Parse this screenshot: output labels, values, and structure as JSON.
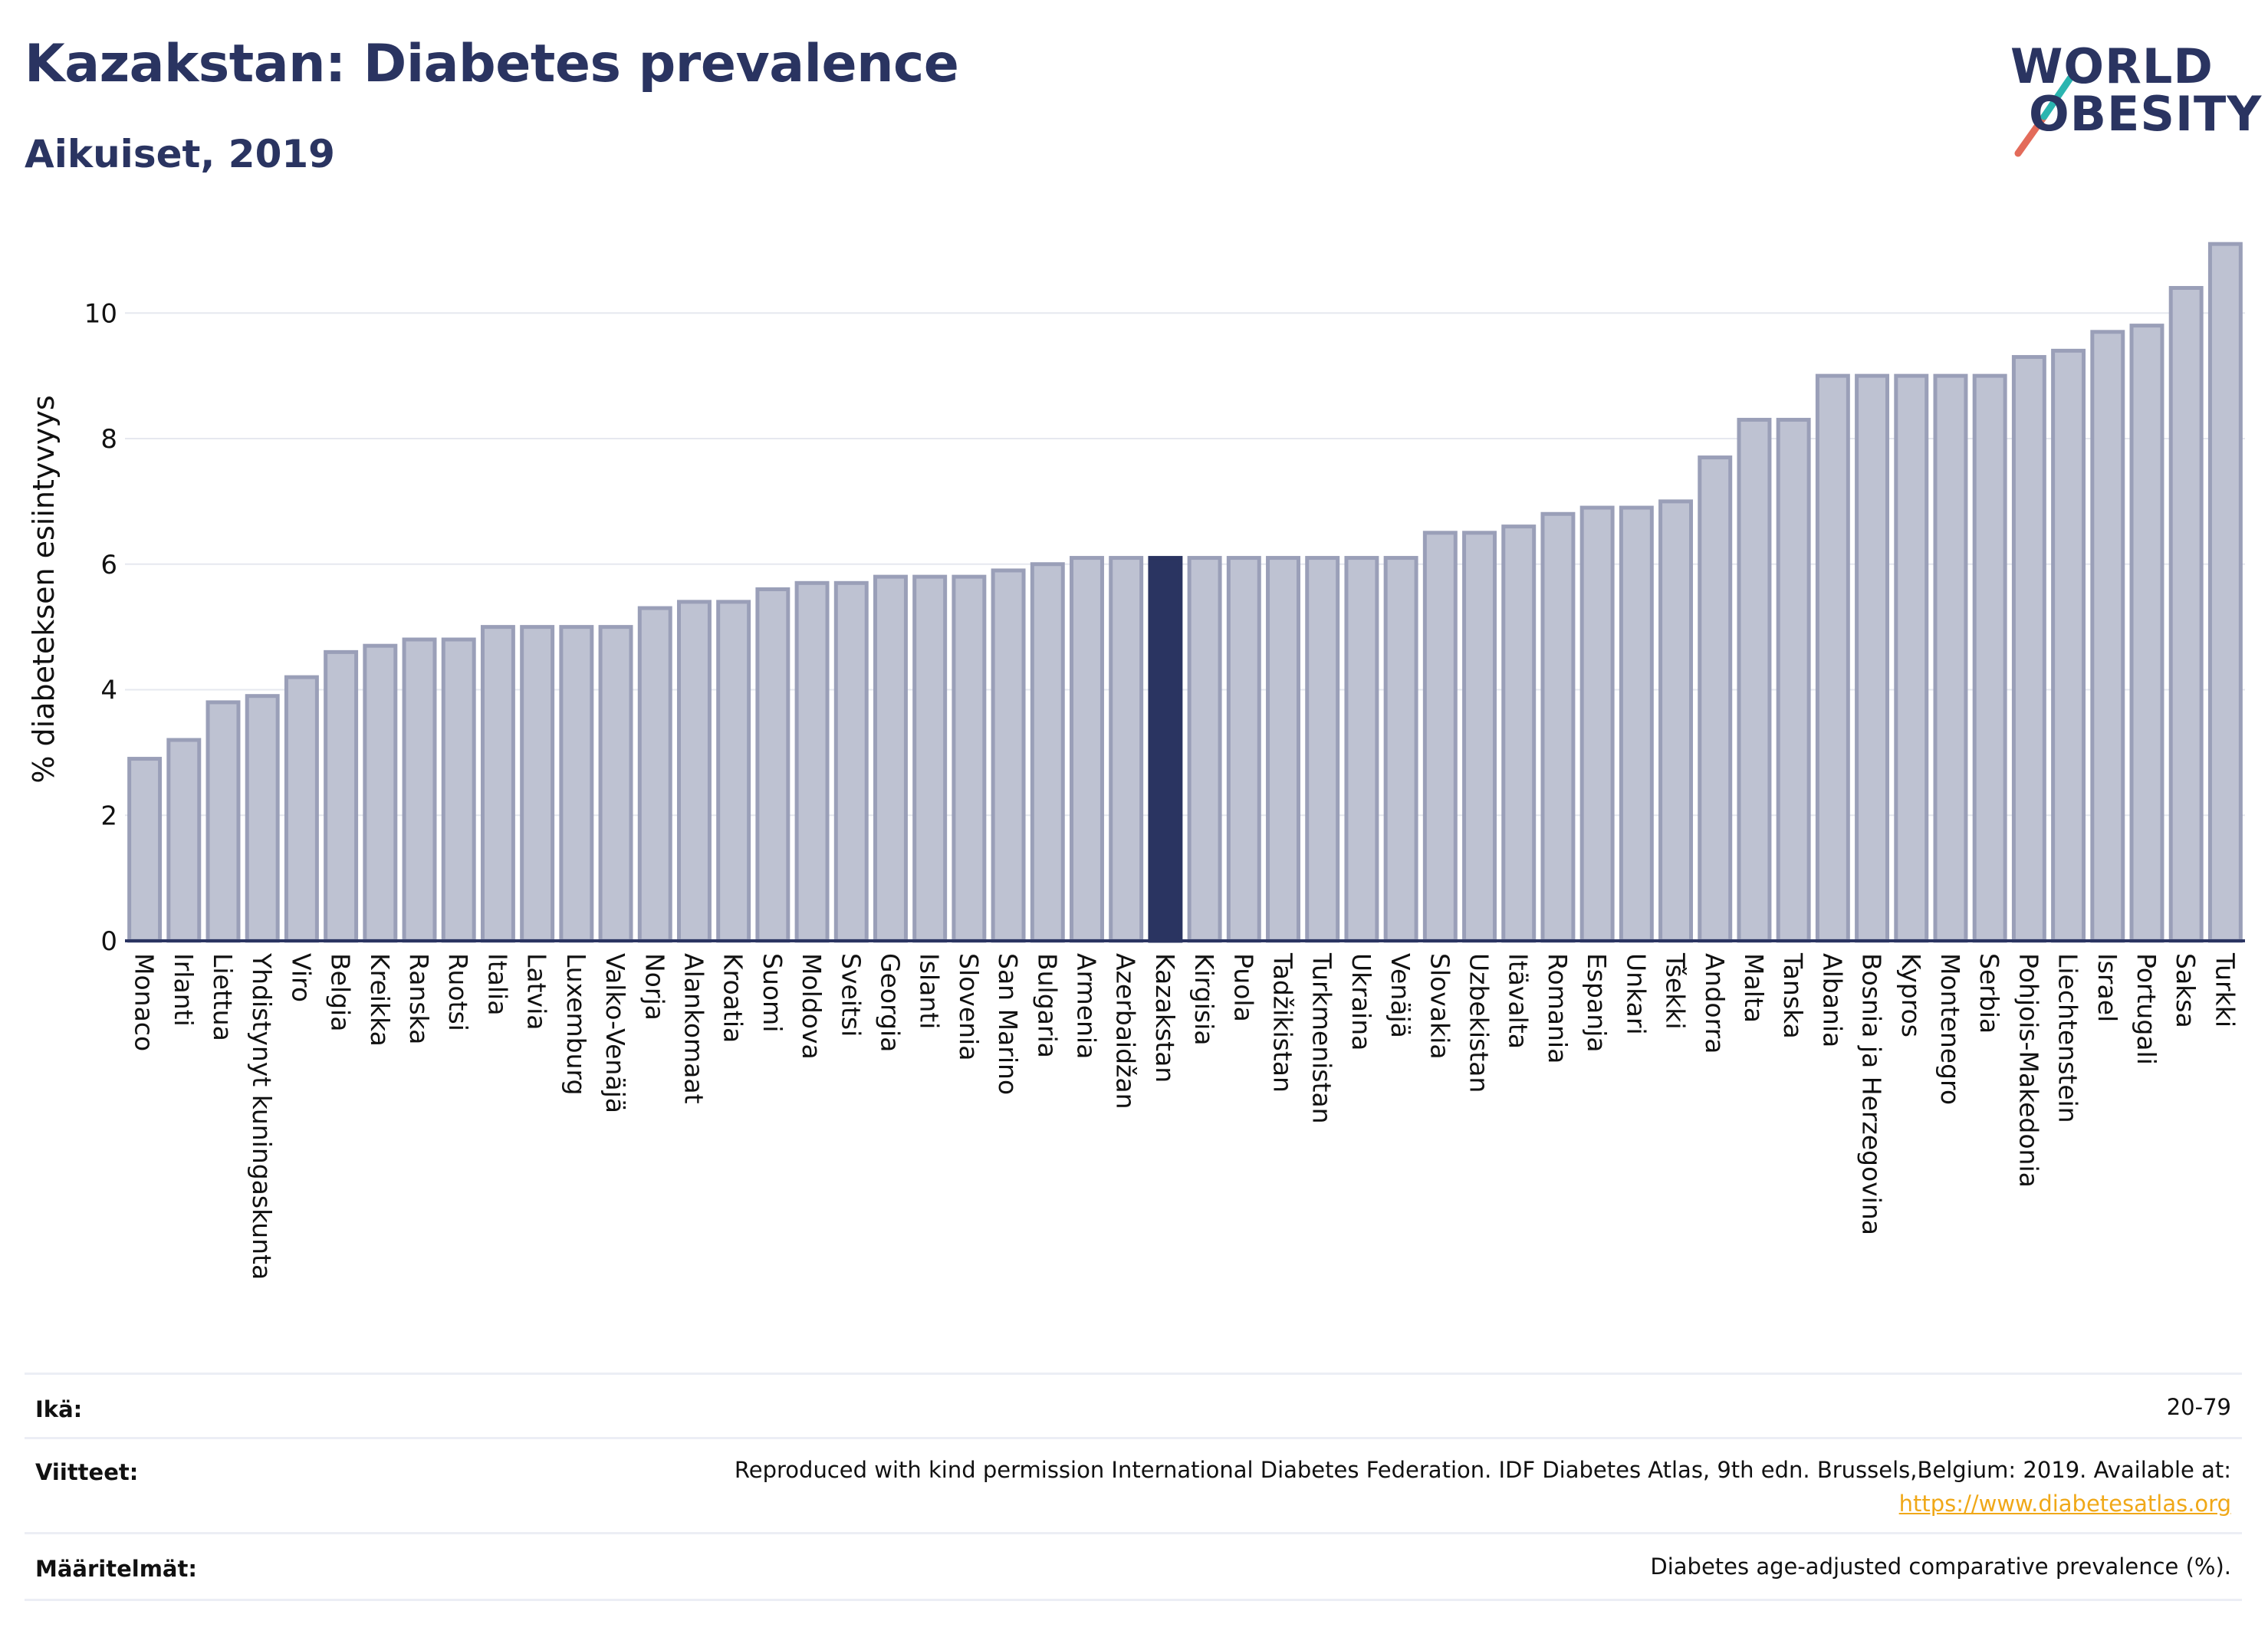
{
  "header": {
    "title": "Kazakstan: Diabetes prevalence",
    "subtitle": "Aikuiset, 2019",
    "logo_line1": "WORLD",
    "logo_line2": "OBESITY"
  },
  "colors": {
    "bar_fill": "#bec2d2",
    "bar_stroke": "#9a9fb8",
    "highlight": "#2a3461",
    "grid": "#e6e8ef",
    "axis": "#2a3461",
    "logo_teal": "#2bb5b0",
    "logo_red": "#e36b5a",
    "link": "#f0a818"
  },
  "chart_data": {
    "type": "bar",
    "ylabel": "% diabeteksen esiintyvyys",
    "ylim": [
      0,
      11.2
    ],
    "yticks": [
      0,
      2,
      4,
      6,
      8,
      10
    ],
    "grid": true,
    "highlight_category": "Kazakstan",
    "categories": [
      "Monaco",
      "Irlanti",
      "Liettua",
      "Yhdistynyt kuningaskunta",
      "Viro",
      "Belgia",
      "Kreikka",
      "Ranska",
      "Ruotsi",
      "Italia",
      "Latvia",
      "Luxemburg",
      "Valko-Venäjä",
      "Norja",
      "Alankomaat",
      "Kroatia",
      "Suomi",
      "Moldova",
      "Sveitsi",
      "Georgia",
      "Islanti",
      "Slovenia",
      "San Marino",
      "Bulgaria",
      "Armenia",
      "Azerbaidžan",
      "Kazakstan",
      "Kirgisia",
      "Puola",
      "Tadžikistan",
      "Turkmenistan",
      "Ukraina",
      "Venäjä",
      "Slovakia",
      "Uzbekistan",
      "Itävalta",
      "Romania",
      "Espanja",
      "Unkari",
      "Tšekki",
      "Andorra",
      "Malta",
      "Tanska",
      "Albania",
      "Bosnia ja Herzegovina",
      "Kypros",
      "Montenegro",
      "Serbia",
      "Pohjois-Makedonia",
      "Liechtenstein",
      "Israel",
      "Portugali",
      "Saksa",
      "Turkki"
    ],
    "values": [
      2.9,
      3.2,
      3.8,
      3.9,
      4.2,
      4.6,
      4.7,
      4.8,
      4.8,
      5.0,
      5.0,
      5.0,
      5.0,
      5.3,
      5.4,
      5.4,
      5.6,
      5.7,
      5.7,
      5.8,
      5.8,
      5.8,
      5.9,
      6.0,
      6.1,
      6.1,
      6.1,
      6.1,
      6.1,
      6.1,
      6.1,
      6.1,
      6.1,
      6.5,
      6.5,
      6.6,
      6.8,
      6.9,
      6.9,
      7.0,
      7.7,
      8.3,
      8.3,
      9.0,
      9.0,
      9.0,
      9.0,
      9.0,
      9.3,
      9.4,
      9.7,
      9.8,
      10.4,
      11.1
    ]
  },
  "footer": {
    "rows": [
      {
        "label": "Ikä:",
        "text": "20-79",
        "link": ""
      },
      {
        "label": "Viitteet:",
        "text": "Reproduced with kind permission International Diabetes Federation. IDF Diabetes Atlas, 9th edn. Brussels,Belgium: 2019. Available at:",
        "link": "https://www.diabetesatlas.org"
      },
      {
        "label": "Määritelmät:",
        "text": "Diabetes age-adjusted comparative prevalence (%).",
        "link": ""
      }
    ]
  }
}
